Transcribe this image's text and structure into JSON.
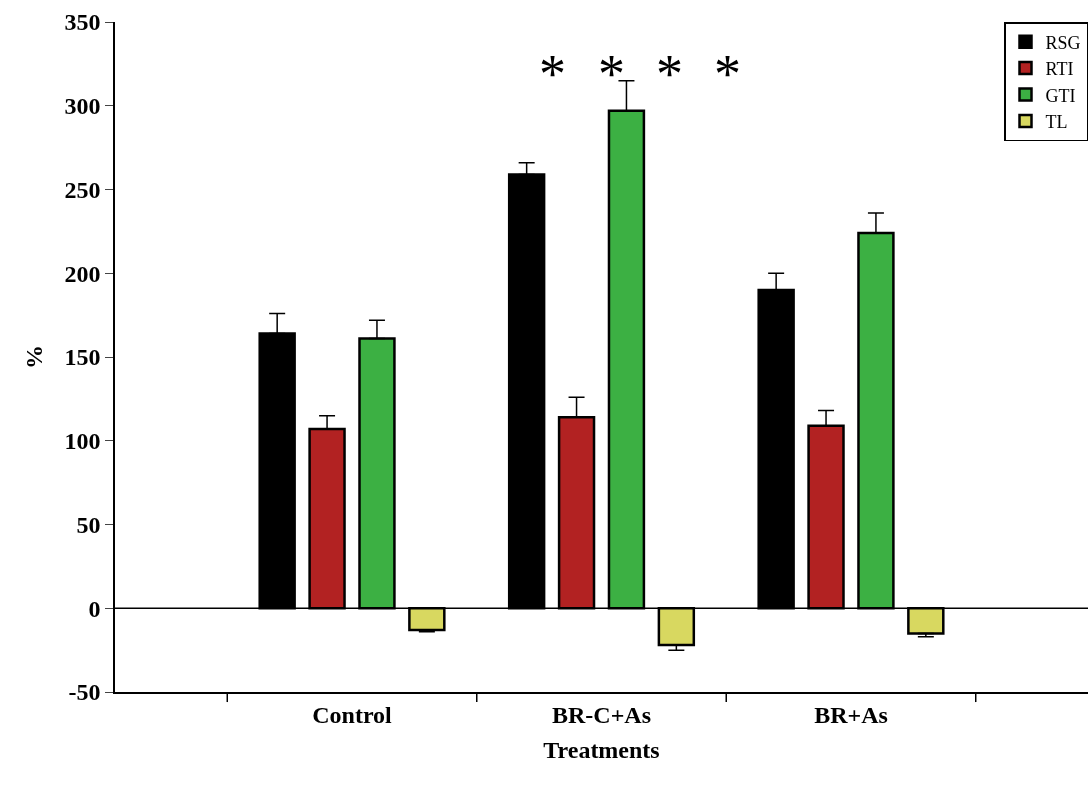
{
  "chart_data": {
    "type": "bar",
    "xlabel": "Treatments",
    "ylabel": "%",
    "categories": [
      "Control",
      "BR-C+As",
      "BR+As"
    ],
    "series": [
      {
        "name": "RSG",
        "color": "#000000",
        "values": [
          164,
          259,
          190
        ],
        "errors": [
          [
            164,
            176
          ],
          [
            259,
            266
          ],
          [
            190,
            200
          ]
        ]
      },
      {
        "name": "RTI",
        "color": "#b22222",
        "values": [
          107,
          114,
          109
        ],
        "errors": [
          [
            107,
            115
          ],
          [
            114,
            126
          ],
          [
            109,
            118
          ]
        ]
      },
      {
        "name": "GTI",
        "color": "#3cb043",
        "values": [
          161,
          297,
          224
        ],
        "errors": [
          [
            161,
            172
          ],
          [
            297,
            315
          ],
          [
            224,
            236
          ]
        ]
      },
      {
        "name": "TL",
        "color": "#d8d860",
        "values": [
          -13,
          -22,
          -15
        ],
        "errors": [
          [
            -14,
            -13
          ],
          [
            -25,
            -22
          ],
          [
            -17,
            -15
          ]
        ]
      }
    ],
    "ylim": [
      -50,
      350
    ],
    "yticks": [
      -50,
      0,
      50,
      100,
      150,
      200,
      250,
      300,
      350
    ],
    "ref_lines": [
      {
        "axis": "y",
        "value": 0,
        "color": "#000000"
      }
    ],
    "annotations": [
      "*",
      "*",
      "*",
      "*"
    ],
    "legend": "top right"
  }
}
